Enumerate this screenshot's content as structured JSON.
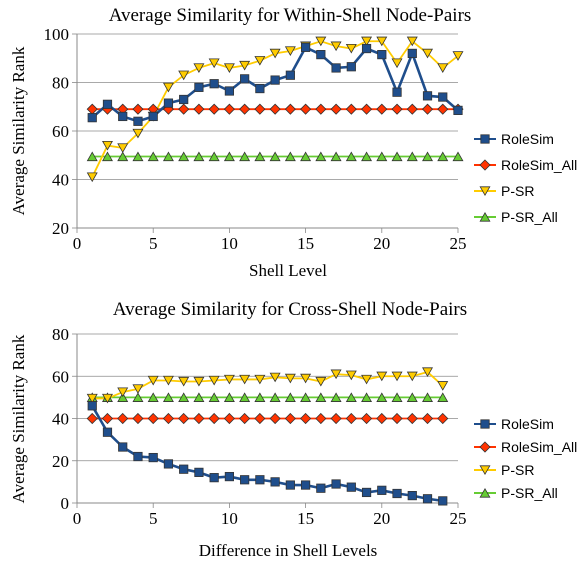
{
  "chart_data": [
    {
      "type": "line",
      "title": "Average Similarity for Within-Shell Node-Pairs",
      "xlabel": "Shell Level",
      "ylabel": "Average Similarity Rank",
      "xlim": [
        0,
        25
      ],
      "ylim": [
        20,
        100
      ],
      "xticks": [
        0,
        5,
        10,
        15,
        20,
        25
      ],
      "yticks": [
        20,
        40,
        60,
        80,
        100
      ],
      "grid": "horizontal",
      "legend_position": "right",
      "x": [
        1,
        2,
        3,
        4,
        5,
        6,
        7,
        8,
        9,
        10,
        11,
        12,
        13,
        14,
        15,
        16,
        17,
        18,
        19,
        20,
        21,
        22,
        23,
        24,
        25
      ],
      "series": [
        {
          "name": "RoleSim",
          "color": "#1f4e8c",
          "marker": "square",
          "values": [
            65.5,
            71,
            66,
            64,
            66,
            71.5,
            73,
            78,
            79.5,
            76.5,
            81.5,
            77.5,
            81,
            83,
            94.5,
            91.5,
            86,
            86.5,
            94,
            91.5,
            76,
            92,
            74.5,
            74,
            68.5
          ]
        },
        {
          "name": "RoleSim_All",
          "color": "#ff3300",
          "marker": "diamond",
          "values": [
            69,
            69,
            69,
            69,
            69,
            69,
            69,
            69,
            69,
            69,
            69,
            69,
            69,
            69,
            69,
            69,
            69,
            69,
            69,
            69,
            69,
            69,
            69,
            69,
            69
          ]
        },
        {
          "name": "P-SR",
          "color": "#ffcc00",
          "marker": "triangle-down",
          "values": [
            41,
            54,
            53,
            59,
            66,
            78,
            83,
            86,
            88,
            86,
            87,
            89,
            92,
            93,
            95,
            97,
            95,
            94,
            97,
            97,
            88,
            97,
            92,
            86,
            91
          ]
        },
        {
          "name": "P-SR_All",
          "color": "#66cc33",
          "marker": "triangle-up",
          "values": [
            49.5,
            49.5,
            49.5,
            49.5,
            49.5,
            49.5,
            49.5,
            49.5,
            49.5,
            49.5,
            49.5,
            49.5,
            49.5,
            49.5,
            49.5,
            49.5,
            49.5,
            49.5,
            49.5,
            49.5,
            49.5,
            49.5,
            49.5,
            49.5,
            49.5
          ]
        }
      ]
    },
    {
      "type": "line",
      "title": "Average Similarity for Cross-Shell Node-Pairs",
      "xlabel": "Difference in Shell Levels",
      "ylabel": "Average Similarity Rank",
      "xlim": [
        0,
        25
      ],
      "ylim": [
        0,
        80
      ],
      "xticks": [
        0,
        5,
        10,
        15,
        20,
        25
      ],
      "yticks": [
        0,
        20,
        40,
        60,
        80
      ],
      "grid": "horizontal",
      "legend_position": "right",
      "x": [
        1,
        2,
        3,
        4,
        5,
        6,
        7,
        8,
        9,
        10,
        11,
        12,
        13,
        14,
        15,
        16,
        17,
        18,
        19,
        20,
        21,
        22,
        23,
        24
      ],
      "series": [
        {
          "name": "RoleSim",
          "color": "#1f4e8c",
          "marker": "square",
          "values": [
            46,
            33.5,
            26.5,
            22,
            21.5,
            18.5,
            16,
            14.5,
            12,
            12.5,
            11,
            11,
            10,
            8.5,
            8.5,
            7,
            9,
            7.5,
            5,
            6,
            4.5,
            3.5,
            2,
            1
          ]
        },
        {
          "name": "RoleSim_All",
          "color": "#ff3300",
          "marker": "diamond",
          "values": [
            40,
            40,
            40,
            40,
            40,
            40,
            40,
            40,
            40,
            40,
            40,
            40,
            40,
            40,
            40,
            40,
            40,
            40,
            40,
            40,
            40,
            40,
            40,
            40
          ]
        },
        {
          "name": "P-SR",
          "color": "#ffcc00",
          "marker": "triangle-down",
          "values": [
            49.5,
            49.5,
            52.5,
            54,
            58,
            58,
            57.5,
            57.5,
            58,
            58.5,
            58.5,
            58.5,
            59.5,
            59,
            59,
            57.5,
            61,
            60.5,
            58.5,
            60,
            60,
            60,
            62,
            55.5
          ]
        },
        {
          "name": "P-SR_All",
          "color": "#66cc33",
          "marker": "triangle-up",
          "values": [
            50,
            50,
            50,
            50,
            50,
            50,
            50,
            50,
            50,
            50,
            50,
            50,
            50,
            50,
            50,
            50,
            50,
            50,
            50,
            50,
            50,
            50,
            50,
            50
          ]
        }
      ]
    }
  ]
}
